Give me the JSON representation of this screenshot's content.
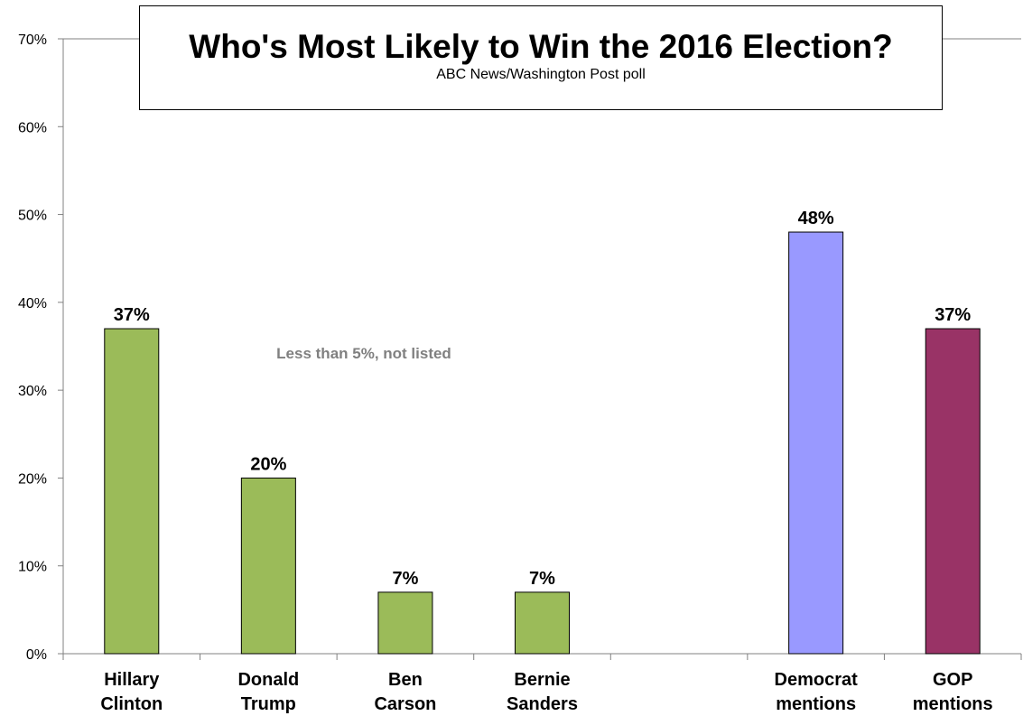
{
  "chart_data": {
    "type": "bar",
    "title": "Who's Most Likely to Win the 2016 Election?",
    "subtitle": "ABC News/Washington  Post poll",
    "categories": [
      {
        "line1": "Hillary",
        "line2": "Clinton"
      },
      {
        "line1": "Donald",
        "line2": "Trump"
      },
      {
        "line1": "Ben",
        "line2": "Carson"
      },
      {
        "line1": "Bernie",
        "line2": "Sanders"
      },
      {
        "line1": "",
        "line2": ""
      },
      {
        "line1": "Democrat",
        "line2": "mentions"
      },
      {
        "line1": "GOP",
        "line2": "mentions"
      }
    ],
    "values": [
      37,
      20,
      7,
      7,
      null,
      48,
      37
    ],
    "data_labels": [
      "37%",
      "20%",
      "7%",
      "7%",
      "",
      "48%",
      "37%"
    ],
    "colors": [
      "#9bbb59",
      "#9bbb59",
      "#9bbb59",
      "#9bbb59",
      "",
      "#9999ff",
      "#993366"
    ],
    "ylim": [
      0,
      70
    ],
    "yticks": [
      "0%",
      "10%",
      "20%",
      "30%",
      "40%",
      "50%",
      "60%",
      "70%"
    ],
    "grid": "top line only",
    "annotation": "Less than 5%, not listed",
    "annotation_color": "#808080"
  }
}
